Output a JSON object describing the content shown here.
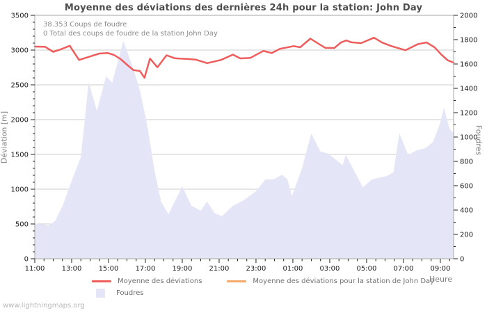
{
  "watermark": "www.lightningmaps.org",
  "chart_data": {
    "type": "line+area",
    "title": "Moyenne des déviations des dernières 24h pour la station: John Day",
    "xlabel": "Heure",
    "ylabel_left": "Déviation [m]",
    "ylabel_right": "Foudres",
    "annotation1": "38.353  Coups de foudre",
    "annotation2": "0 Total des coups de foudre de la station John Day",
    "ylim_left": [
      0,
      3500
    ],
    "ylim_right": [
      0,
      2000
    ],
    "y_ticks_left": [
      0,
      500,
      1000,
      1500,
      2000,
      2500,
      3000,
      3500
    ],
    "y_ticks_right": [
      0,
      200,
      400,
      600,
      800,
      1000,
      1200,
      1400,
      1600,
      1800,
      2000
    ],
    "y_minor_step": 100,
    "x_range_hours": [
      0,
      22.72
    ],
    "x_minor_step": 0.5,
    "x_ticks": [
      {
        "t": 0,
        "label": "11:00"
      },
      {
        "t": 2,
        "label": "13:00"
      },
      {
        "t": 4,
        "label": "15:00"
      },
      {
        "t": 6,
        "label": "17:00"
      },
      {
        "t": 8,
        "label": "19:00"
      },
      {
        "t": 10,
        "label": "21:00"
      },
      {
        "t": 12,
        "label": "23:00"
      },
      {
        "t": 14,
        "label": "01:00"
      },
      {
        "t": 16,
        "label": "03:00"
      },
      {
        "t": 18,
        "label": "05:00"
      },
      {
        "t": 20,
        "label": "07:00"
      },
      {
        "t": 22,
        "label": "09:00"
      }
    ],
    "colors": {
      "deviation_line": "#ee5c5c",
      "station_line": "#f5a96b",
      "foudres_fill": "#e5e5f8",
      "grid": "#cdcdcd",
      "frame": "#a6a6a6",
      "tick": "#222222",
      "tick_label": "#1a1a1a"
    },
    "series": [
      {
        "name": "Moyenne des déviations",
        "type": "line",
        "axis": "left",
        "points": [
          [
            0.0,
            3050
          ],
          [
            0.55,
            3048
          ],
          [
            1.0,
            2975
          ],
          [
            1.35,
            3005
          ],
          [
            1.9,
            3062
          ],
          [
            2.4,
            2858
          ],
          [
            3.0,
            2908
          ],
          [
            3.5,
            2950
          ],
          [
            3.95,
            2958
          ],
          [
            4.3,
            2930
          ],
          [
            4.65,
            2872
          ],
          [
            5.0,
            2790
          ],
          [
            5.35,
            2712
          ],
          [
            5.7,
            2700
          ],
          [
            5.95,
            2602
          ],
          [
            6.25,
            2878
          ],
          [
            6.65,
            2753
          ],
          [
            7.15,
            2925
          ],
          [
            7.6,
            2882
          ],
          [
            8.3,
            2872
          ],
          [
            8.75,
            2862
          ],
          [
            9.35,
            2812
          ],
          [
            10.1,
            2858
          ],
          [
            10.75,
            2935
          ],
          [
            11.15,
            2880
          ],
          [
            11.7,
            2888
          ],
          [
            12.4,
            2988
          ],
          [
            12.85,
            2958
          ],
          [
            13.3,
            3018
          ],
          [
            14.05,
            3057
          ],
          [
            14.4,
            3040
          ],
          [
            14.95,
            3165
          ],
          [
            15.4,
            3090
          ],
          [
            15.75,
            3033
          ],
          [
            16.25,
            3030
          ],
          [
            16.6,
            3107
          ],
          [
            16.9,
            3140
          ],
          [
            17.15,
            3113
          ],
          [
            17.7,
            3100
          ],
          [
            18.4,
            3178
          ],
          [
            18.85,
            3107
          ],
          [
            19.35,
            3057
          ],
          [
            20.1,
            2998
          ],
          [
            20.8,
            3087
          ],
          [
            21.25,
            3110
          ],
          [
            21.7,
            3037
          ],
          [
            22.05,
            2937
          ],
          [
            22.4,
            2853
          ],
          [
            22.72,
            2820
          ]
        ]
      },
      {
        "name": "Moyenne des déviations pour la station de John Day",
        "type": "line",
        "axis": "left",
        "points": []
      },
      {
        "name": "Foudres",
        "type": "area",
        "axis": "right",
        "points": [
          [
            0.0,
            290
          ],
          [
            0.5,
            280
          ],
          [
            0.75,
            272
          ],
          [
            1.1,
            310
          ],
          [
            1.5,
            430
          ],
          [
            2.1,
            680
          ],
          [
            2.5,
            835
          ],
          [
            2.92,
            1450
          ],
          [
            3.37,
            1215
          ],
          [
            3.87,
            1500
          ],
          [
            4.2,
            1445
          ],
          [
            4.8,
            1790
          ],
          [
            5.35,
            1560
          ],
          [
            5.72,
            1370
          ],
          [
            6.1,
            1100
          ],
          [
            6.5,
            720
          ],
          [
            6.85,
            470
          ],
          [
            7.25,
            365
          ],
          [
            8.0,
            595
          ],
          [
            8.5,
            435
          ],
          [
            9.0,
            395
          ],
          [
            9.35,
            470
          ],
          [
            9.75,
            375
          ],
          [
            10.15,
            350
          ],
          [
            10.75,
            435
          ],
          [
            11.3,
            478
          ],
          [
            12.0,
            555
          ],
          [
            12.5,
            650
          ],
          [
            13.0,
            655
          ],
          [
            13.4,
            690
          ],
          [
            13.7,
            655
          ],
          [
            13.95,
            515
          ],
          [
            14.5,
            745
          ],
          [
            15.0,
            1030
          ],
          [
            15.5,
            880
          ],
          [
            15.9,
            865
          ],
          [
            16.7,
            770
          ],
          [
            16.87,
            853
          ],
          [
            17.8,
            587
          ],
          [
            18.3,
            653
          ],
          [
            19.1,
            680
          ],
          [
            19.45,
            710
          ],
          [
            19.78,
            1030
          ],
          [
            20.25,
            853
          ],
          [
            20.7,
            890
          ],
          [
            21.2,
            910
          ],
          [
            21.6,
            958
          ],
          [
            21.95,
            1095
          ],
          [
            22.2,
            1240
          ],
          [
            22.5,
            1065
          ],
          [
            22.72,
            1035
          ]
        ]
      }
    ]
  }
}
